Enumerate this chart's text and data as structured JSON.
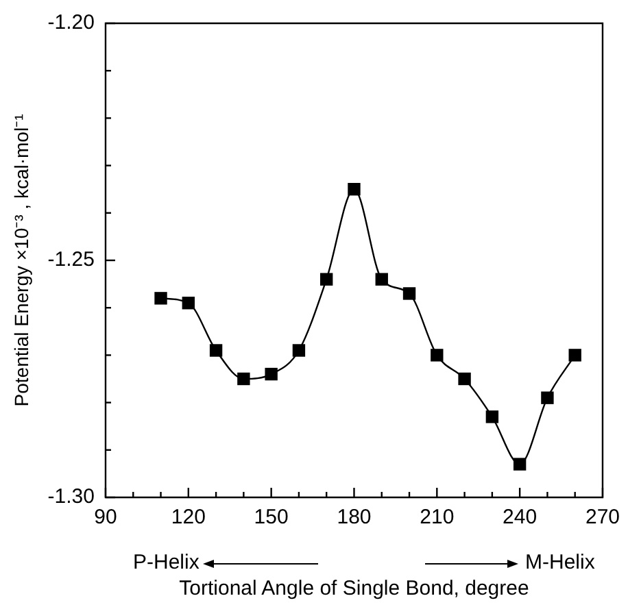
{
  "chart_data": {
    "type": "line",
    "xlabel": "Tortional Angle of Single Bond, degree",
    "ylabel": "Potential Energy ×10⁻³ , kcal·mol⁻¹",
    "x": [
      110,
      120,
      130,
      140,
      150,
      160,
      170,
      180,
      190,
      200,
      210,
      220,
      230,
      240,
      250,
      260
    ],
    "series": [
      {
        "color": "#000000",
        "values": [
          -1.258,
          -1.259,
          -1.269,
          -1.275,
          -1.274,
          -1.269,
          -1.254,
          -1.235,
          -1.254,
          -1.257,
          -1.27,
          -1.275,
          -1.283,
          -1.293,
          -1.279,
          -1.27
        ]
      }
    ],
    "xlim": [
      90,
      270
    ],
    "xticks": [
      90,
      {
        "value": 100,
        "label": null
      },
      {
        "value": 110,
        "label": null
      },
      120,
      {
        "value": 130,
        "label": null
      },
      {
        "value": 140,
        "label": null
      },
      150,
      {
        "value": 160,
        "label": null
      },
      {
        "value": 170,
        "label": null
      },
      180,
      {
        "value": 190,
        "label": null
      },
      {
        "value": 200,
        "label": null
      },
      210,
      {
        "value": 220,
        "label": null
      },
      {
        "value": 230,
        "label": null
      },
      240,
      {
        "value": 250,
        "label": null
      },
      {
        "value": 260,
        "label": null
      },
      270
    ],
    "ylim": [
      -1.3,
      -1.2
    ],
    "yticks": [
      {
        "value": -1.3,
        "label": "-1.30"
      },
      {
        "value": -1.29,
        "label": null
      },
      {
        "value": -1.28,
        "label": null
      },
      {
        "value": -1.27,
        "label": null
      },
      {
        "value": -1.26,
        "label": null
      },
      {
        "value": -1.25,
        "label": "-1.25"
      },
      {
        "value": -1.24,
        "label": null
      },
      {
        "value": -1.23,
        "label": null
      },
      {
        "value": -1.22,
        "label": null
      },
      {
        "value": -1.21,
        "label": null
      },
      {
        "value": -1.2,
        "label": "-1.20"
      }
    ],
    "annotations": [
      "P-Helix",
      "M-Helix"
    ],
    "grid": false,
    "legend": false,
    "marker": "square",
    "line_style": "solid"
  }
}
